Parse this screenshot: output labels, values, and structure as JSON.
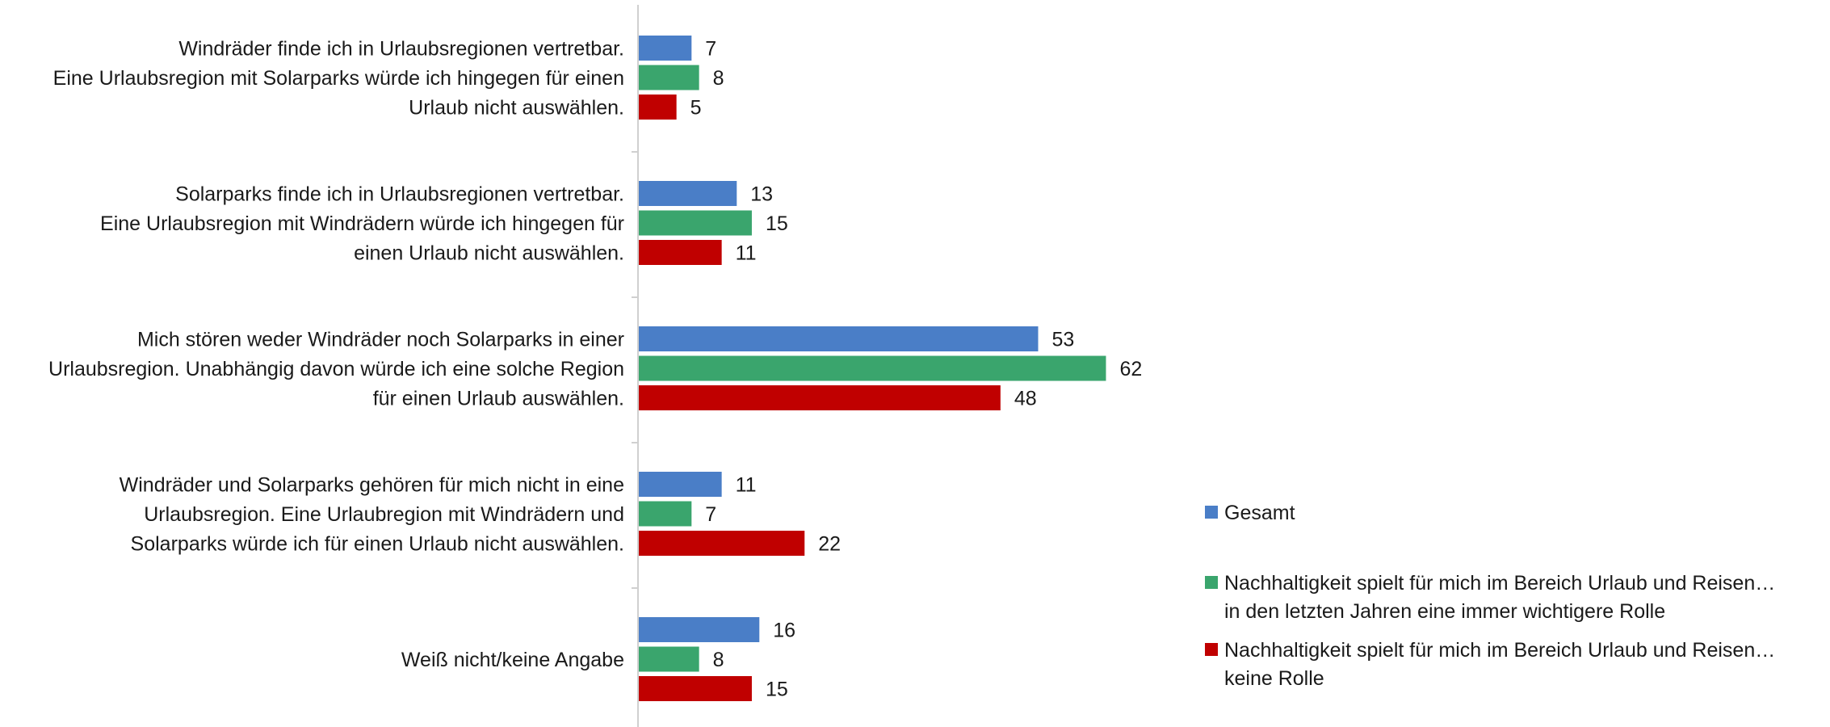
{
  "chart_data": {
    "type": "bar",
    "orientation": "horizontal",
    "categories": [
      [
        "Windräder finde ich in Urlaubsregionen vertretbar.",
        "Eine Urlaubsregion mit Solarparks würde ich hingegen für einen",
        "Urlaub nicht auswählen."
      ],
      [
        "Solarparks finde ich in Urlaubsregionen vertretbar.",
        "Eine Urlaubsregion mit Windrädern würde ich hingegen für",
        "einen Urlaub nicht auswählen."
      ],
      [
        "Mich stören weder Windräder noch Solarparks in einer",
        "Urlaubsregion. Unabhängig davon würde ich eine solche Region",
        "für einen Urlaub auswählen."
      ],
      [
        "Windräder und Solarparks gehören für mich nicht in eine",
        "Urlaubsregion. Eine Urlaubregion mit Windrädern und",
        "Solarparks würde ich für einen Urlaub nicht auswählen."
      ],
      [
        "Weiß nicht/keine Angabe"
      ]
    ],
    "series": [
      {
        "name": "Gesamt",
        "values": [
          7,
          13,
          53,
          11,
          16
        ],
        "color": "#4A7EC7"
      },
      {
        "name": [
          "Nachhaltigkeit spielt für mich im Bereich Urlaub und Reisen…",
          "in den letzten Jahren eine immer wichtigere Rolle"
        ],
        "values": [
          8,
          15,
          62,
          7,
          8
        ],
        "color": "#3AA56D"
      },
      {
        "name": [
          "Nachhaltigkeit spielt für mich im Bereich Urlaub und Reisen…",
          "keine Rolle"
        ],
        "values": [
          5,
          11,
          48,
          22,
          15
        ],
        "color": "#C00000"
      }
    ],
    "xlim": [
      0,
      100
    ],
    "grid": false,
    "legend_position": "right",
    "data_labels": true
  }
}
